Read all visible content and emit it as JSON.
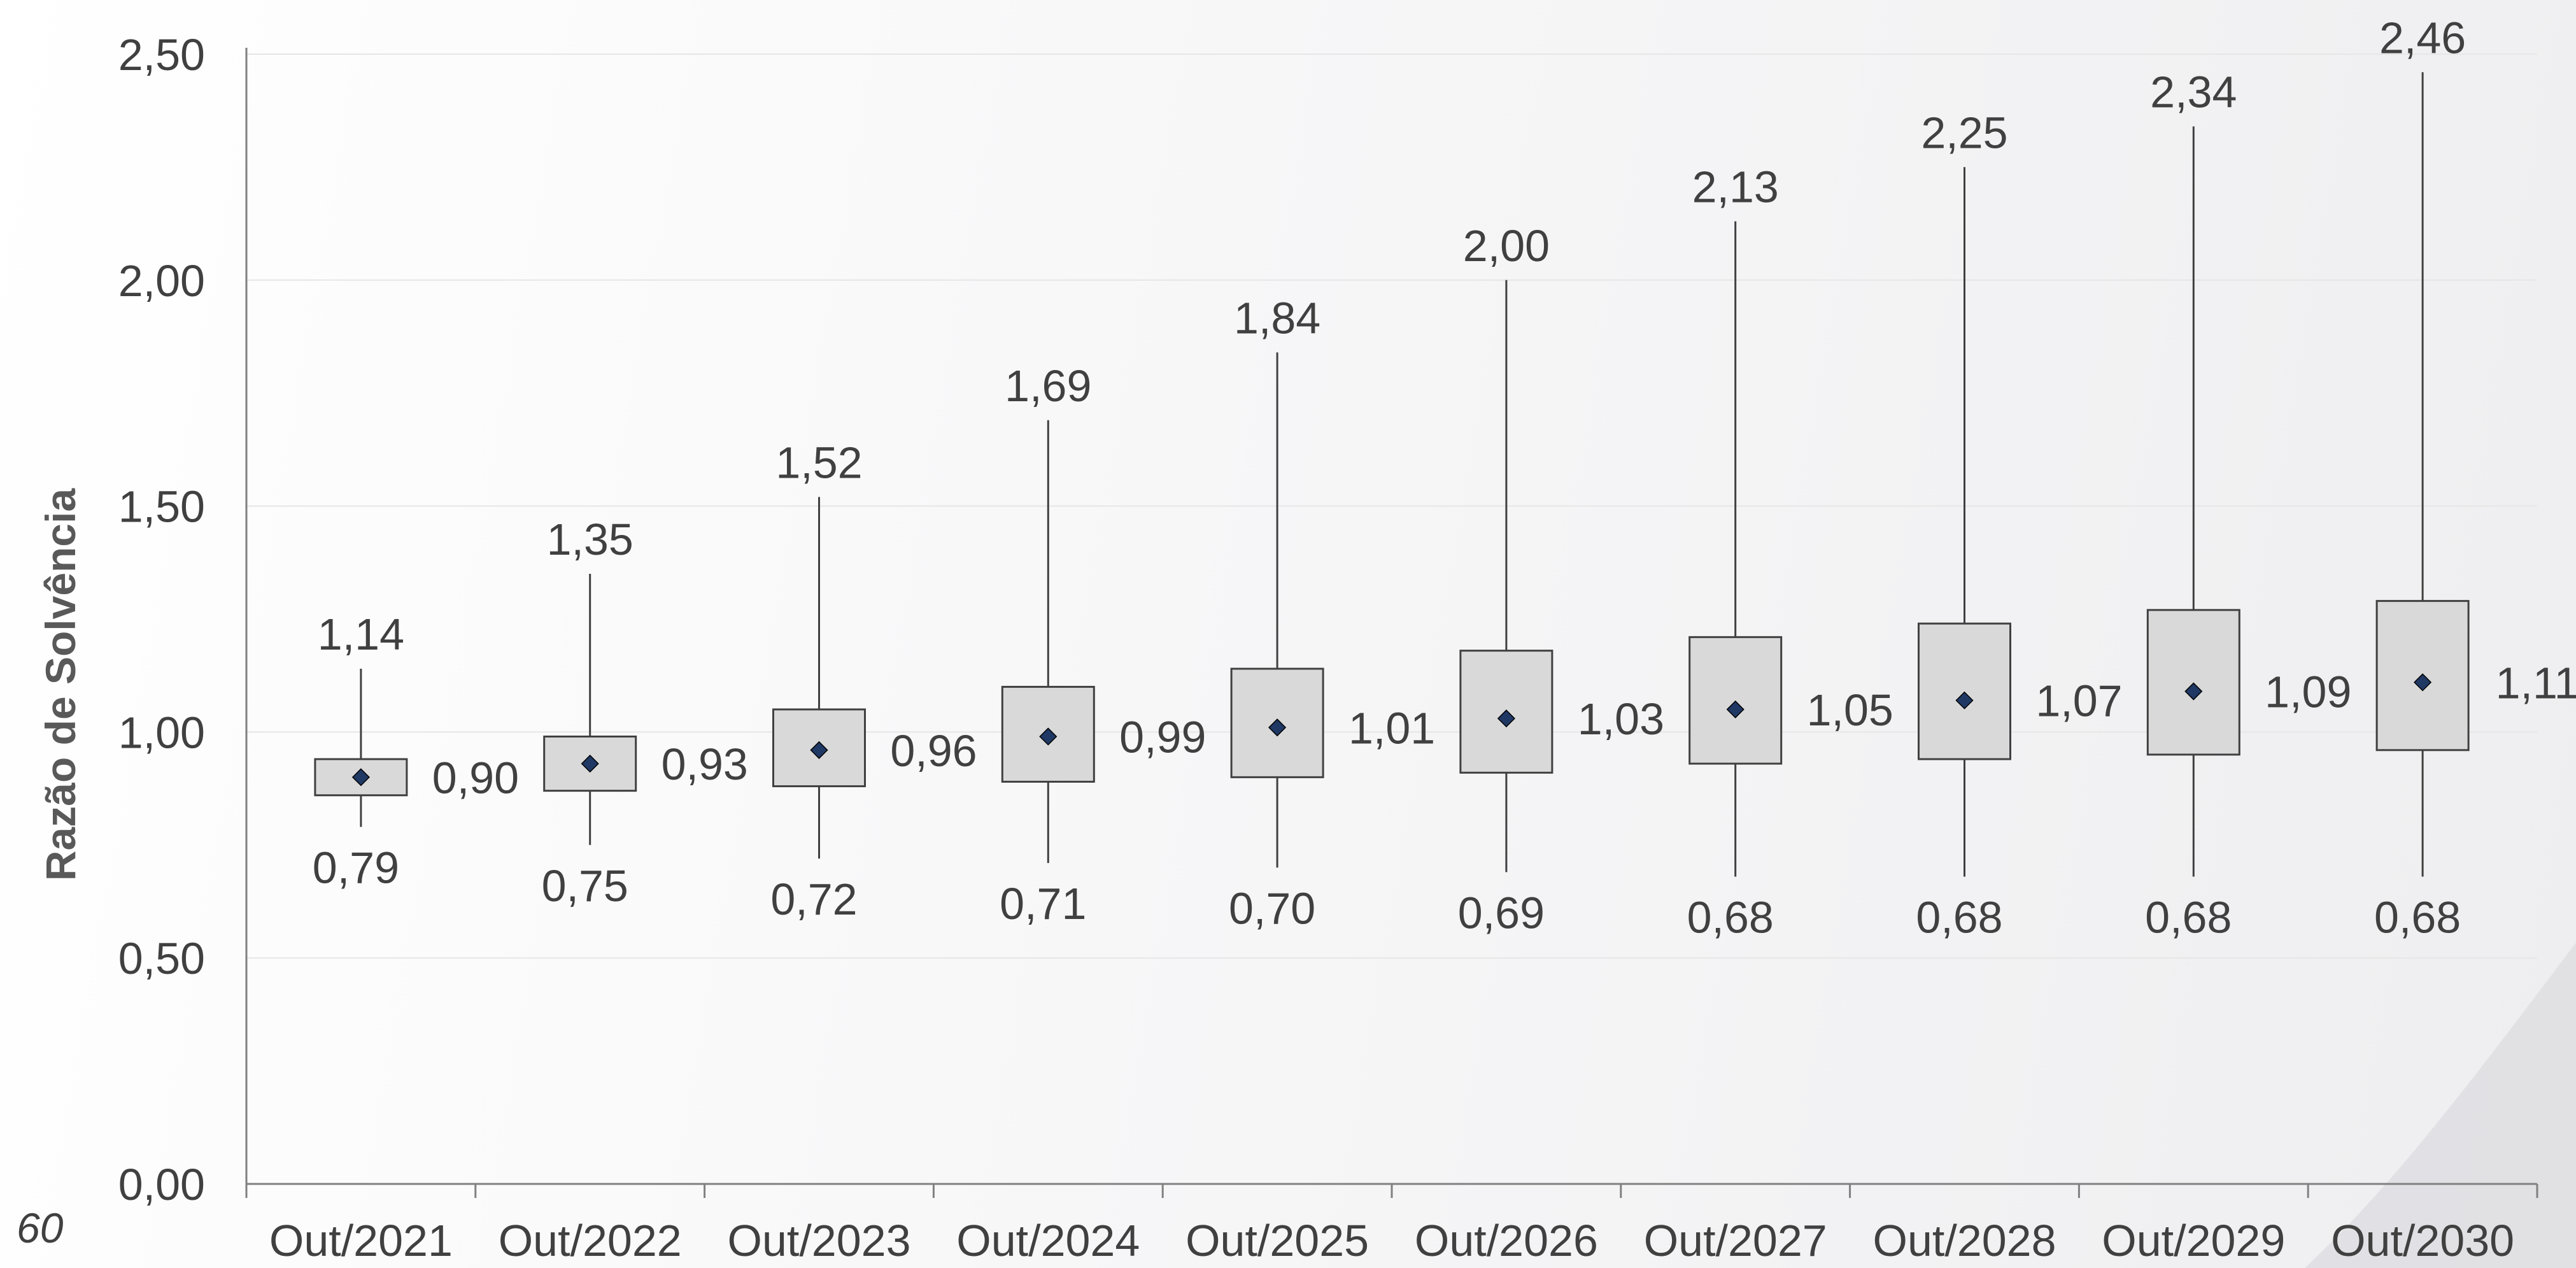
{
  "page_number": "60",
  "chart_data": {
    "type": "box",
    "title": "",
    "xlabel": "",
    "ylabel": "Razão de Solvência",
    "ylim": [
      0,
      2.5
    ],
    "yticks": [
      0,
      0.5,
      1.0,
      1.5,
      2.0,
      2.5
    ],
    "ytick_labels": [
      "0,00",
      "0,50",
      "1,00",
      "1,50",
      "2,00",
      "2,50"
    ],
    "grid": true,
    "categories": [
      "Out/2021",
      "Out/2022",
      "Out/2023",
      "Out/2024",
      "Out/2025",
      "Out/2026",
      "Out/2027",
      "Out/2028",
      "Out/2029",
      "Out/2030"
    ],
    "series": [
      {
        "max": [
          1.14,
          1.35,
          1.52,
          1.69,
          1.84,
          2.0,
          2.13,
          2.25,
          2.34,
          2.46
        ],
        "q3": [
          0.94,
          0.99,
          1.05,
          1.1,
          1.14,
          1.18,
          1.21,
          1.24,
          1.27,
          1.29
        ],
        "median": [
          0.9,
          0.93,
          0.96,
          0.99,
          1.01,
          1.03,
          1.05,
          1.07,
          1.09,
          1.11
        ],
        "q1": [
          0.86,
          0.87,
          0.88,
          0.89,
          0.9,
          0.91,
          0.93,
          0.94,
          0.95,
          0.96
        ],
        "min": [
          0.79,
          0.75,
          0.72,
          0.71,
          0.7,
          0.69,
          0.68,
          0.68,
          0.68,
          0.68
        ],
        "max_labels": [
          "1,14",
          "1,35",
          "1,52",
          "1,69",
          "1,84",
          "2,00",
          "2,13",
          "2,25",
          "2,34",
          "2,46"
        ],
        "median_labels": [
          "0,90",
          "0,93",
          "0,96",
          "0,99",
          "1,01",
          "1,03",
          "1,05",
          "1,07",
          "1,09",
          "1,11"
        ],
        "min_labels": [
          "0,79",
          "0,75",
          "0,72",
          "0,71",
          "0,70",
          "0,69",
          "0,68",
          "0,68",
          "0,68",
          "0,68"
        ]
      }
    ],
    "colors": {
      "box_fill": "#d9d9d9",
      "box_stroke": "#404040",
      "marker": "#1f3864",
      "axis": "#808080",
      "grid": "#e6e6e6",
      "text": "#404040"
    }
  }
}
